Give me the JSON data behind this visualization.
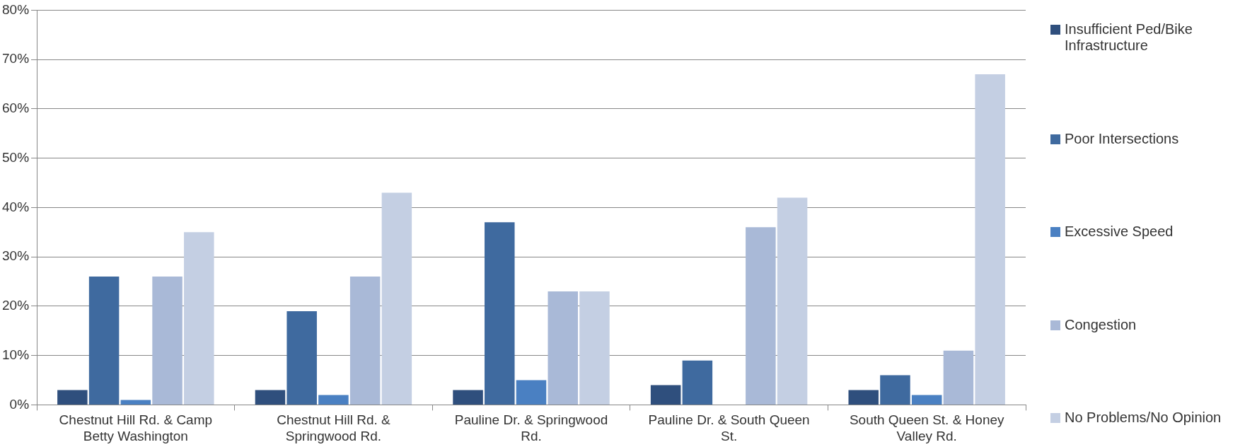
{
  "chart_data": {
    "type": "bar",
    "categories": [
      "Chestnut Hill Rd. & Camp Betty Washington",
      "Chestnut Hill Rd. & Springwood Rd.",
      "Pauline Dr. & Springwood Rd.",
      "Pauline Dr. & South Queen St.",
      "South Queen St. & Honey Valley Rd."
    ],
    "series": [
      {
        "name": "Insufficient Ped/Bike Infrastructure",
        "color": "#2f4f7d",
        "values": [
          3,
          3,
          3,
          4,
          3
        ]
      },
      {
        "name": "Poor Intersections",
        "color": "#3f6a9f",
        "values": [
          26,
          19,
          37,
          9,
          6
        ]
      },
      {
        "name": "Excessive Speed",
        "color": "#4a80c2",
        "values": [
          1,
          2,
          5,
          0,
          2
        ]
      },
      {
        "name": "Congestion",
        "color": "#a9b9d7",
        "values": [
          26,
          26,
          23,
          36,
          11
        ]
      },
      {
        "name": "No Problems/No Opinion",
        "color": "#c4cfe3",
        "values": [
          35,
          43,
          23,
          42,
          67
        ]
      }
    ],
    "ylim": [
      0,
      80
    ],
    "yticks": [
      {
        "value": 0,
        "label": "0%"
      },
      {
        "value": 10,
        "label": "10%"
      },
      {
        "value": 20,
        "label": "20%"
      },
      {
        "value": 30,
        "label": "30%"
      },
      {
        "value": 40,
        "label": "40%"
      },
      {
        "value": 50,
        "label": "50%"
      },
      {
        "value": 60,
        "label": "60%"
      },
      {
        "value": 70,
        "label": "70%"
      },
      {
        "value": 80,
        "label": "80%"
      }
    ],
    "grid": "y",
    "legend": "right"
  }
}
